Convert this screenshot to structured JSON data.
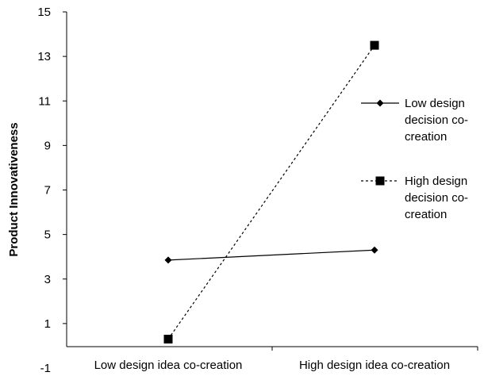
{
  "chart_data": {
    "type": "line",
    "title": "",
    "xlabel": "",
    "ylabel": "Product Innovativeness",
    "categories": [
      "Low design idea co-creation",
      "High design idea co-creation"
    ],
    "ylim": [
      -1,
      15
    ],
    "yticks": [
      -1,
      1,
      3,
      5,
      7,
      9,
      11,
      13,
      15
    ],
    "grid": false,
    "legend_position": "right",
    "series": [
      {
        "name": "Low design decision co-creation",
        "legend_lines": [
          "Low design",
          "decision co-",
          "creation"
        ],
        "values": [
          3.85,
          4.3
        ],
        "marker": "diamond",
        "line_style": "solid",
        "color": "#000000"
      },
      {
        "name": "High design decision co-creation",
        "legend_lines": [
          "High design",
          "decision co-",
          "creation"
        ],
        "values": [
          0.3,
          13.5
        ],
        "marker": "square",
        "line_style": "dashed",
        "color": "#000000"
      }
    ]
  }
}
